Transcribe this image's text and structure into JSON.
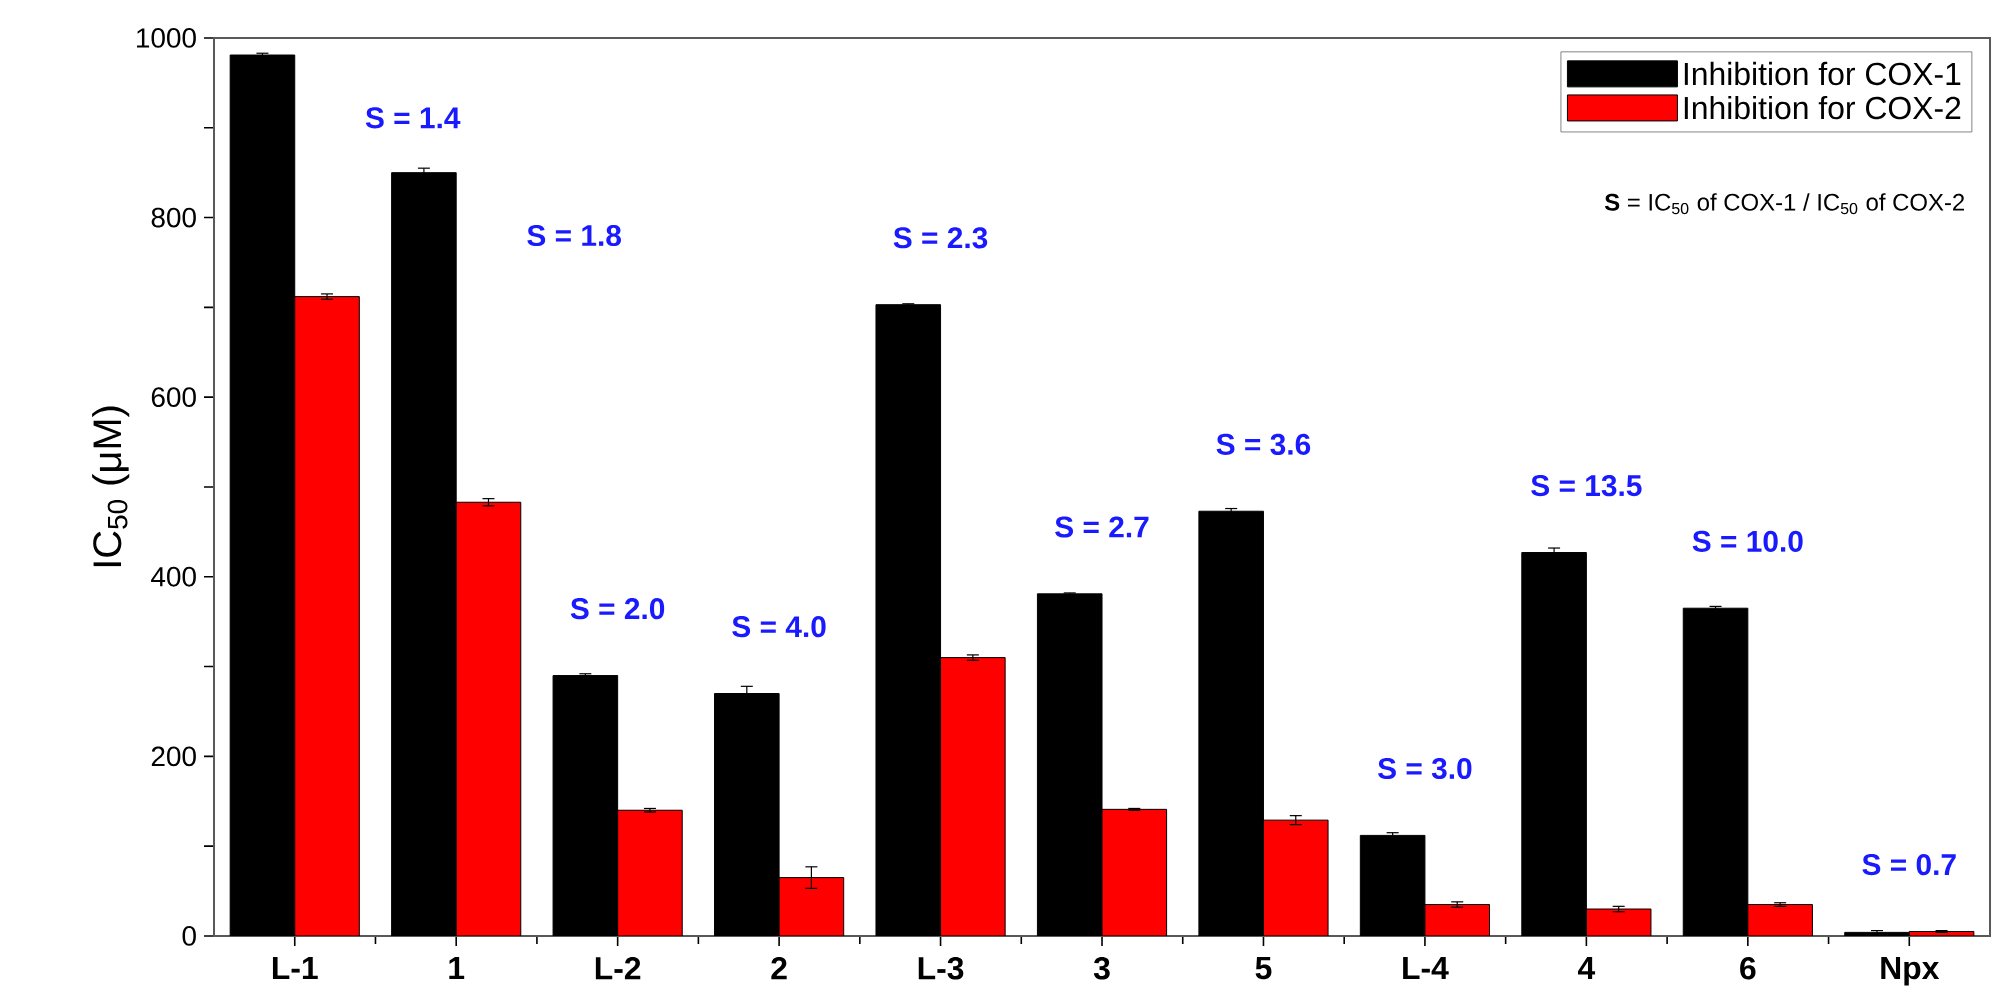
{
  "chart_data": {
    "type": "bar",
    "ylabel": "IC$_{50}$ (μM)",
    "categories": [
      "L-1",
      "1",
      "L-2",
      "2",
      "L-3",
      "3",
      "5",
      "L-4",
      "4",
      "6",
      "Npx"
    ],
    "series": [
      {
        "name": "Inhibition for COX-1",
        "color": "#000000",
        "values": [
          981,
          850,
          290,
          270,
          703,
          381,
          473,
          112,
          427,
          365,
          4
        ],
        "errors": [
          2,
          5,
          2,
          8,
          1,
          1,
          3,
          3,
          5,
          2,
          2
        ]
      },
      {
        "name": "Inhibition for COX-2",
        "color": "#ff0000",
        "values": [
          712,
          483,
          140,
          65,
          310,
          141,
          129,
          35,
          30,
          35,
          5
        ],
        "errors": [
          3,
          4,
          2,
          12,
          3,
          1,
          5,
          3,
          3,
          2,
          1
        ]
      }
    ],
    "ylim": [
      0,
      1000
    ],
    "yticks": [
      0,
      {
        "value": 100,
        "label": null
      },
      200,
      {
        "value": 300,
        "label": null
      },
      400,
      {
        "value": 500,
        "label": null
      },
      600,
      {
        "value": 700,
        "label": null
      },
      800,
      {
        "value": 900,
        "label": null
      },
      1000
    ],
    "legend": "top right",
    "annotations": [
      "S = 1.4",
      "S = 1.8",
      "S = 2.0",
      "S = 4.0",
      "S = 2.3",
      "S = 2.7",
      "S = 3.6",
      "S = 3.0",
      "S = 13.5",
      "S = 10.0",
      "S = 0.7",
      "**S** = IC$_{50}$ of COX-1 / IC$_{50}$ of COX-2"
    ]
  }
}
